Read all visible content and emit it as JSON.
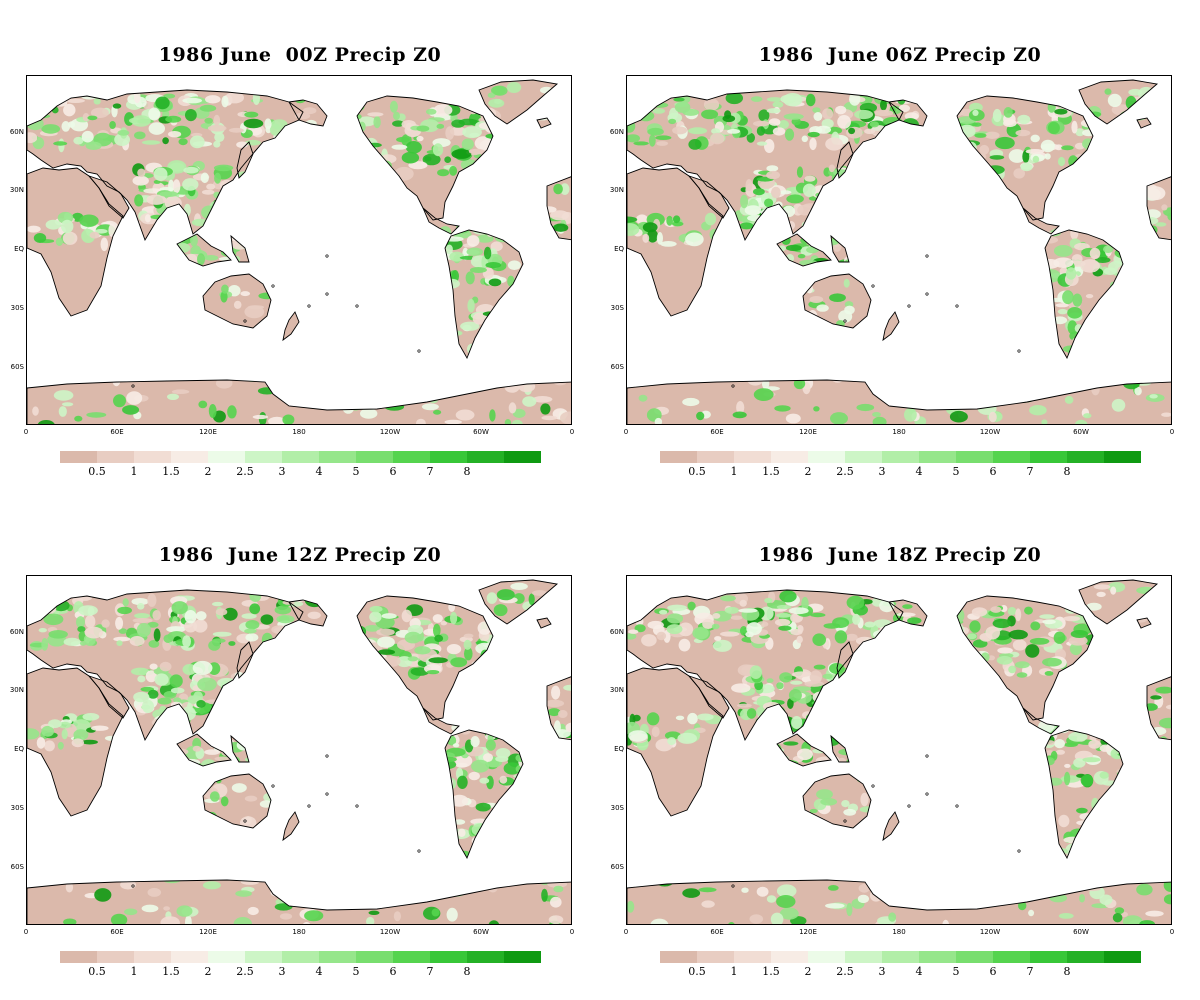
{
  "panels": [
    {
      "title": "1986 June  00Z Precip Z0"
    },
    {
      "title": "1986  June 06Z Precip Z0"
    },
    {
      "title": "1986  June 12Z Precip Z0"
    },
    {
      "title": "1986  June 18Z Precip Z0"
    }
  ],
  "lat_labels": [
    "60N",
    "30N",
    "EQ",
    "30S",
    "60S"
  ],
  "lon_labels": [
    "0",
    "60E",
    "120E",
    "180",
    "120W",
    "60W",
    "0"
  ],
  "colorbar": {
    "labels": [
      "0.5",
      "1",
      "1.5",
      "2",
      "2.5",
      "3",
      "4",
      "5",
      "6",
      "7",
      "8"
    ],
    "colors": [
      "#dbb9ab",
      "#e8cdc2",
      "#f1ddd4",
      "#f7ece5",
      "#ecfbe8",
      "#cdf5c6",
      "#b2eea8",
      "#96e68b",
      "#78de6e",
      "#55d44e",
      "#38c738",
      "#24b126",
      "#0f9a12"
    ]
  }
}
